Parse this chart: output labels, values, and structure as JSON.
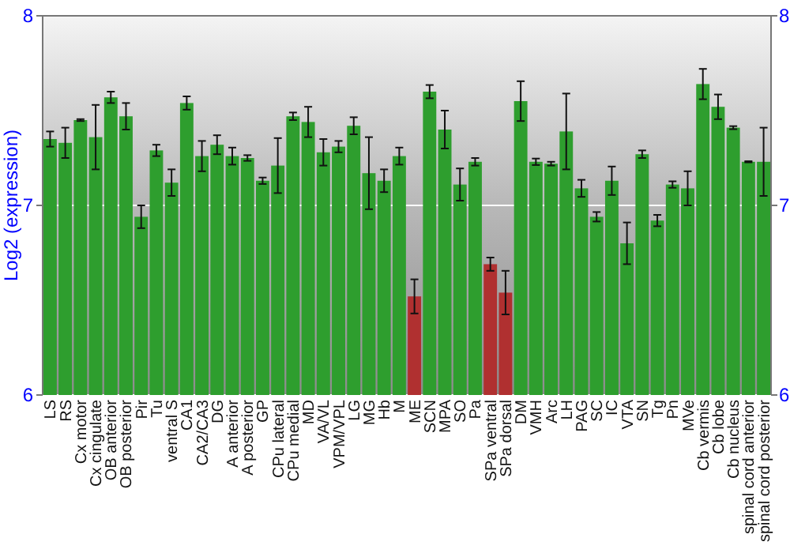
{
  "chart_data": {
    "type": "bar",
    "ylabel": "Log2 (expression)",
    "categories": [
      "LS",
      "RS",
      "Cx motor",
      "Cx cingulate",
      "OB anterior",
      "OB posterior",
      "Pir",
      "Tu",
      "ventral S",
      "CA1",
      "CA2/CA3",
      "DG",
      "A anterior",
      "A posterior",
      "GP",
      "CPu lateral",
      "CPu medial",
      "MD",
      "VA/VL",
      "VPM/VPL",
      "LG",
      "MG",
      "Hb",
      "M",
      "ME",
      "SCN",
      "MPA",
      "SO",
      "Pa",
      "SPa ventral",
      "SPa dorsal",
      "DM",
      "VMH",
      "Arc",
      "LH",
      "PAG",
      "SC",
      "IC",
      "VTA",
      "SN",
      "Tg",
      "Pn",
      "MVe",
      "Cb vermis",
      "Cb lobe",
      "Cb nucleus",
      "spinal cord anterior",
      "spinal cord posterior"
    ],
    "values": [
      7.35,
      7.33,
      7.45,
      7.36,
      7.57,
      7.47,
      6.94,
      7.29,
      7.12,
      7.54,
      7.26,
      7.32,
      7.26,
      7.25,
      7.13,
      7.21,
      7.47,
      7.44,
      7.28,
      7.31,
      7.42,
      7.17,
      7.13,
      7.26,
      6.52,
      7.6,
      7.4,
      7.11,
      7.23,
      6.69,
      6.54,
      7.55,
      7.23,
      7.22,
      7.39,
      7.09,
      6.94,
      7.13,
      6.8,
      7.27,
      6.92,
      7.11,
      7.09,
      7.64,
      7.52,
      7.41,
      7.23,
      7.23
    ],
    "errors": [
      0.04,
      0.08,
      0.005,
      0.17,
      0.03,
      0.07,
      0.06,
      0.03,
      0.07,
      0.035,
      0.08,
      0.05,
      0.045,
      0.015,
      0.017,
      0.145,
      0.02,
      0.08,
      0.07,
      0.03,
      0.045,
      0.19,
      0.06,
      0.045,
      0.09,
      0.035,
      0.1,
      0.085,
      0.02,
      0.035,
      0.115,
      0.105,
      0.017,
      0.01,
      0.2,
      0.045,
      0.025,
      0.075,
      0.11,
      0.02,
      0.03,
      0.017,
      0.09,
      0.08,
      0.065,
      0.008,
      0.003,
      0.18
    ],
    "colors": [
      "#2e9e2e",
      "#2e9e2e",
      "#2e9e2e",
      "#2e9e2e",
      "#2e9e2e",
      "#2e9e2e",
      "#2e9e2e",
      "#2e9e2e",
      "#2e9e2e",
      "#2e9e2e",
      "#2e9e2e",
      "#2e9e2e",
      "#2e9e2e",
      "#2e9e2e",
      "#2e9e2e",
      "#2e9e2e",
      "#2e9e2e",
      "#2e9e2e",
      "#2e9e2e",
      "#2e9e2e",
      "#2e9e2e",
      "#2e9e2e",
      "#2e9e2e",
      "#2e9e2e",
      "#b03030",
      "#2e9e2e",
      "#2e9e2e",
      "#2e9e2e",
      "#2e9e2e",
      "#b03030",
      "#b03030",
      "#2e9e2e",
      "#2e9e2e",
      "#2e9e2e",
      "#2e9e2e",
      "#2e9e2e",
      "#2e9e2e",
      "#2e9e2e",
      "#2e9e2e",
      "#2e9e2e",
      "#2e9e2e",
      "#2e9e2e",
      "#2e9e2e",
      "#2e9e2e",
      "#2e9e2e",
      "#2e9e2e",
      "#2e9e2e",
      "#2e9e2e"
    ],
    "ylim": [
      6,
      8
    ],
    "yticks": [
      6,
      7,
      8
    ],
    "y2lim": [
      6,
      8
    ],
    "y2ticks": [
      6,
      7,
      8
    ],
    "grid": "y"
  }
}
